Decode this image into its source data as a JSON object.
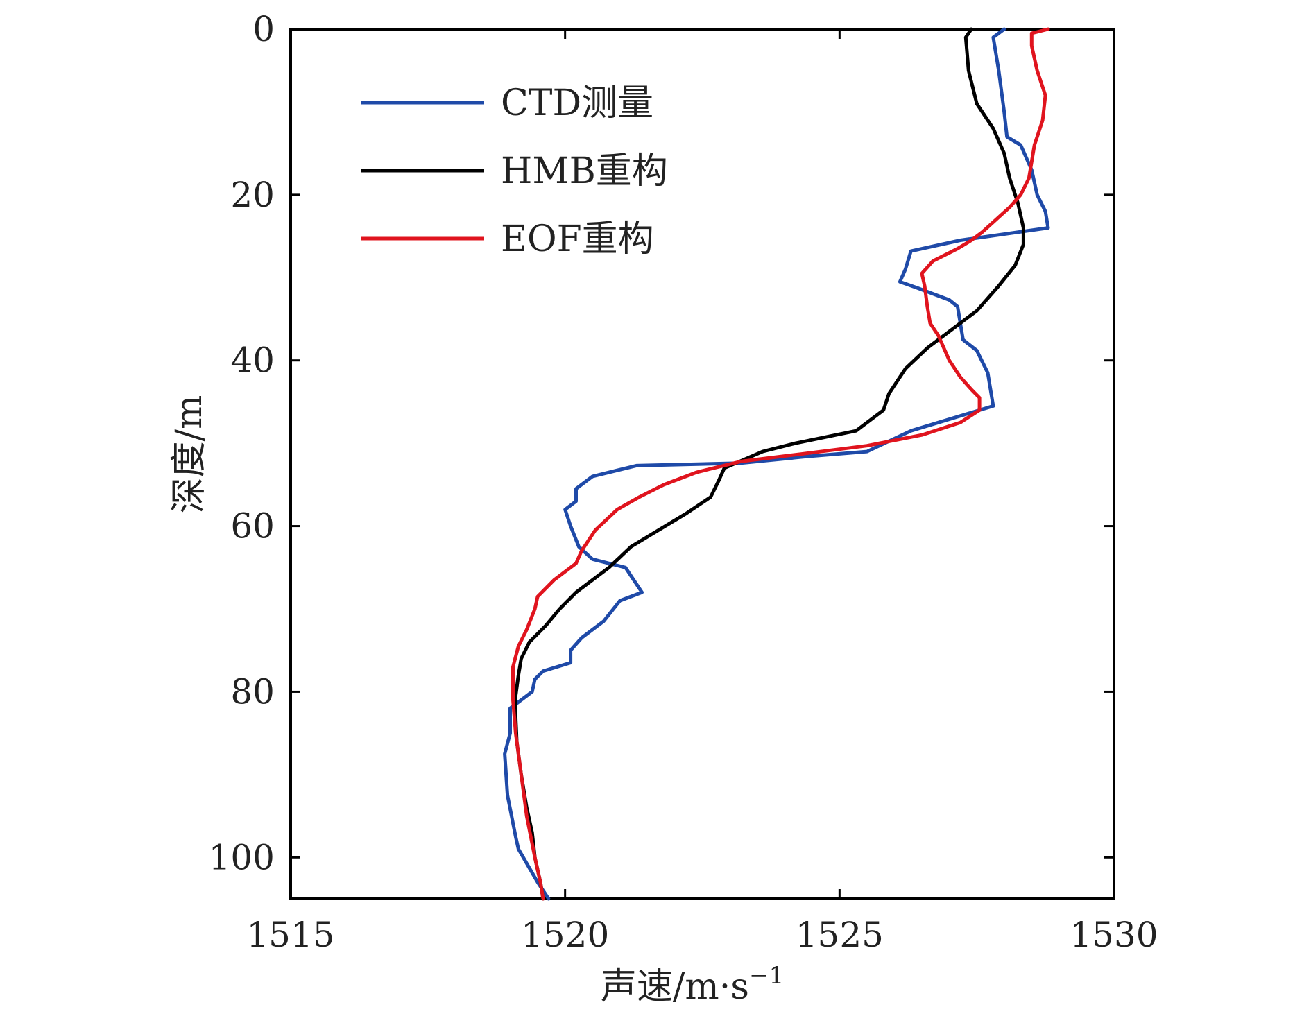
{
  "chart_data": {
    "type": "line",
    "xlabel": "声速/m·s",
    "xlabel_sup": "−1",
    "ylabel": "深度/m",
    "xlim": [
      1515,
      1530
    ],
    "ylim": [
      0,
      105
    ],
    "y_inverted": true,
    "x_ticks": [
      1515,
      1520,
      1525,
      1530
    ],
    "y_ticks": [
      0,
      20,
      40,
      60,
      80,
      100
    ],
    "grid": false,
    "legend_position": "top-left",
    "series": [
      {
        "name": "CTD测量",
        "color": "#1f4aa8",
        "points": [
          [
            1528.0,
            0
          ],
          [
            1527.8,
            1
          ],
          [
            1527.9,
            5
          ],
          [
            1528.0,
            10
          ],
          [
            1528.05,
            13
          ],
          [
            1528.3,
            14
          ],
          [
            1528.5,
            17
          ],
          [
            1528.6,
            20
          ],
          [
            1528.75,
            22
          ],
          [
            1528.8,
            24
          ],
          [
            1527.2,
            25.5
          ],
          [
            1526.3,
            26.8
          ],
          [
            1526.2,
            29
          ],
          [
            1526.1,
            30.5
          ],
          [
            1526.4,
            31.2
          ],
          [
            1527.0,
            32.7
          ],
          [
            1527.15,
            33.5
          ],
          [
            1527.25,
            37.5
          ],
          [
            1527.5,
            38.8
          ],
          [
            1527.7,
            41.5
          ],
          [
            1527.8,
            45.5
          ],
          [
            1526.3,
            48.5
          ],
          [
            1525.5,
            51
          ],
          [
            1524.4,
            51.6
          ],
          [
            1523.2,
            52.4
          ],
          [
            1521.3,
            52.7
          ],
          [
            1520.5,
            54
          ],
          [
            1520.2,
            55.5
          ],
          [
            1520.2,
            57
          ],
          [
            1520.0,
            58
          ],
          [
            1520.1,
            60
          ],
          [
            1520.25,
            62.5
          ],
          [
            1520.5,
            64
          ],
          [
            1521.1,
            65
          ],
          [
            1521.25,
            66.5
          ],
          [
            1521.4,
            68
          ],
          [
            1521.0,
            69
          ],
          [
            1520.7,
            71.5
          ],
          [
            1520.3,
            73.5
          ],
          [
            1520.1,
            75
          ],
          [
            1520.1,
            76.5
          ],
          [
            1519.6,
            77.5
          ],
          [
            1519.45,
            78.5
          ],
          [
            1519.4,
            80
          ],
          [
            1519.0,
            82
          ],
          [
            1519.0,
            85
          ],
          [
            1518.9,
            87.5
          ],
          [
            1518.95,
            92.5
          ],
          [
            1519.1,
            97.5
          ],
          [
            1519.15,
            99
          ],
          [
            1519.5,
            103
          ],
          [
            1519.7,
            105
          ]
        ]
      },
      {
        "name": "HMB重构",
        "color": "#000000",
        "points": [
          [
            1527.4,
            0
          ],
          [
            1527.3,
            1
          ],
          [
            1527.35,
            5
          ],
          [
            1527.5,
            9
          ],
          [
            1527.8,
            12
          ],
          [
            1528.0,
            15
          ],
          [
            1528.1,
            18
          ],
          [
            1528.25,
            21
          ],
          [
            1528.35,
            24
          ],
          [
            1528.35,
            26
          ],
          [
            1528.2,
            28.5
          ],
          [
            1527.9,
            31
          ],
          [
            1527.5,
            34
          ],
          [
            1527.0,
            36.5
          ],
          [
            1526.6,
            38.5
          ],
          [
            1526.2,
            41
          ],
          [
            1525.9,
            44
          ],
          [
            1525.8,
            46
          ],
          [
            1525.3,
            48.5
          ],
          [
            1524.2,
            50
          ],
          [
            1523.6,
            51
          ],
          [
            1522.9,
            53
          ],
          [
            1522.8,
            54.5
          ],
          [
            1522.65,
            56.5
          ],
          [
            1522.2,
            58.5
          ],
          [
            1521.7,
            60.5
          ],
          [
            1521.2,
            62.5
          ],
          [
            1520.8,
            65
          ],
          [
            1520.2,
            68
          ],
          [
            1519.9,
            70
          ],
          [
            1519.65,
            72
          ],
          [
            1519.35,
            74
          ],
          [
            1519.2,
            76
          ],
          [
            1519.15,
            78
          ],
          [
            1519.1,
            80.5
          ],
          [
            1519.1,
            83
          ],
          [
            1519.12,
            86
          ],
          [
            1519.2,
            90
          ],
          [
            1519.3,
            94
          ],
          [
            1519.4,
            97
          ],
          [
            1519.45,
            100
          ],
          [
            1519.55,
            103
          ],
          [
            1519.6,
            105
          ]
        ]
      },
      {
        "name": "EOF重构",
        "color": "#e0141e",
        "points": [
          [
            1528.8,
            0
          ],
          [
            1528.5,
            0.5
          ],
          [
            1528.5,
            2
          ],
          [
            1528.6,
            5
          ],
          [
            1528.75,
            8
          ],
          [
            1528.7,
            11
          ],
          [
            1528.55,
            14
          ],
          [
            1528.45,
            18
          ],
          [
            1528.3,
            20
          ],
          [
            1528.1,
            21.5
          ],
          [
            1527.85,
            23
          ],
          [
            1527.6,
            24.5
          ],
          [
            1527.4,
            25.5
          ],
          [
            1527.15,
            26.5
          ],
          [
            1526.7,
            28
          ],
          [
            1526.5,
            29.5
          ],
          [
            1526.55,
            31
          ],
          [
            1526.6,
            33.5
          ],
          [
            1526.65,
            35.5
          ],
          [
            1526.8,
            37
          ],
          [
            1527.0,
            40
          ],
          [
            1527.2,
            42
          ],
          [
            1527.4,
            43.5
          ],
          [
            1527.55,
            44.5
          ],
          [
            1527.55,
            46
          ],
          [
            1527.2,
            47.5
          ],
          [
            1526.5,
            49
          ],
          [
            1525.5,
            50.3
          ],
          [
            1524.3,
            51.3
          ],
          [
            1523.2,
            52.2
          ],
          [
            1522.4,
            53.5
          ],
          [
            1521.8,
            55
          ],
          [
            1521.35,
            56.5
          ],
          [
            1520.95,
            58
          ],
          [
            1520.55,
            60.5
          ],
          [
            1520.3,
            63
          ],
          [
            1520.2,
            64.5
          ],
          [
            1519.8,
            66.5
          ],
          [
            1519.5,
            68.5
          ],
          [
            1519.45,
            70
          ],
          [
            1519.3,
            72.5
          ],
          [
            1519.15,
            74.5
          ],
          [
            1519.05,
            77
          ],
          [
            1519.05,
            81
          ],
          [
            1519.1,
            85
          ],
          [
            1519.2,
            90
          ],
          [
            1519.3,
            95
          ],
          [
            1519.45,
            100
          ],
          [
            1519.55,
            103
          ],
          [
            1519.6,
            105
          ]
        ]
      }
    ]
  }
}
